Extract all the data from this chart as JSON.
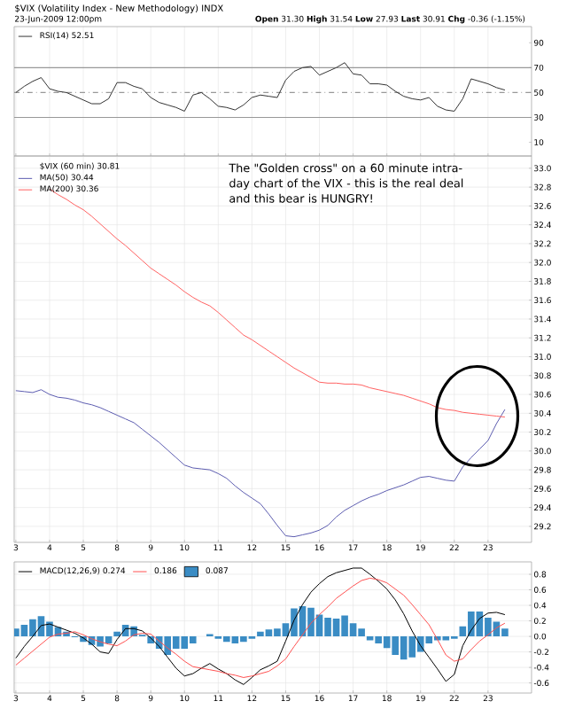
{
  "chart_data": [
    {
      "type": "line",
      "title": "$VIX (Volatility Index - New Methodology) INDX",
      "subtitle": "23-Jun-2009 12:00pm",
      "annotations": [
        "**Open** 31.30 **High** 31.54 **Low** 27.93 **Last** 30.91 **Chg** -0.36 (-1.15%)"
      ],
      "categories": [
        null,
        null,
        null,
        null,
        null,
        null,
        null,
        null,
        null,
        null,
        null,
        null,
        null,
        null,
        null,
        null,
        null,
        null,
        null,
        null,
        null,
        null,
        null,
        null,
        null,
        null,
        null,
        null,
        null,
        null,
        null,
        null,
        null,
        null,
        null,
        null,
        null,
        null,
        null,
        null,
        null,
        null,
        null,
        null,
        null,
        null,
        null,
        null,
        null,
        null,
        null,
        null,
        null,
        null,
        null,
        null,
        null,
        null,
        null,
        null
      ],
      "series": [
        {
          "name": "RSI(14) 52.51",
          "color": "#333333",
          "values": [
            50,
            55,
            59,
            62,
            53,
            51,
            50,
            47,
            44,
            41,
            41,
            45,
            58,
            58,
            55,
            53,
            46,
            42,
            40,
            38,
            35,
            48,
            50,
            45,
            39,
            38,
            36,
            40,
            46,
            48,
            47,
            46,
            60,
            67,
            70,
            71,
            64,
            67,
            70,
            74,
            65,
            64,
            57,
            57,
            56,
            51,
            47,
            45,
            44,
            46,
            39,
            36,
            35,
            45,
            61,
            59,
            57,
            54,
            52,
            null
          ]
        }
      ],
      "ylim": [
        -1,
        103
      ],
      "yticks": [
        10,
        30,
        50,
        70,
        90
      ],
      "tick_labels": "y",
      "ref_lines": [
        {
          "axis": "y",
          "value": 70,
          "color": "#999999",
          "line_style": "solid"
        },
        {
          "axis": "y",
          "value": 50,
          "color": "#999999",
          "line_style": "dashed"
        },
        {
          "axis": "y",
          "value": 30,
          "color": "#999999",
          "line_style": "solid"
        }
      ],
      "grid": "x",
      "legend": "top left"
    },
    {
      "type": "line",
      "legend_title": "$VIX (60 min) 30.81",
      "annotations": [
        "The \"Golden cross\" on a 60 minute intra-day chart of the VIX - this is the real deal and this bear is HUNGRY!"
      ],
      "categories": [
        "3",
        null,
        null,
        null,
        "4",
        null,
        null,
        null,
        "5",
        null,
        null,
        null,
        "8",
        null,
        null,
        null,
        "9",
        null,
        null,
        null,
        "10",
        null,
        null,
        null,
        "11",
        null,
        null,
        null,
        "12",
        null,
        null,
        null,
        "15",
        null,
        null,
        null,
        "16",
        null,
        null,
        null,
        "17",
        null,
        null,
        null,
        "18",
        null,
        null,
        null,
        "19",
        null,
        null,
        null,
        "22",
        null,
        null,
        null,
        "23",
        null,
        null,
        null
      ],
      "series": [
        {
          "name": "MA(50) 30.44",
          "color": "#5c5cb0",
          "values": [
            30.64,
            30.63,
            30.62,
            30.65,
            30.6,
            30.57,
            30.56,
            30.54,
            30.51,
            30.49,
            30.46,
            30.42,
            30.38,
            30.34,
            30.3,
            30.23,
            30.16,
            30.09,
            30.01,
            29.93,
            29.85,
            29.82,
            29.81,
            29.8,
            29.76,
            29.71,
            29.63,
            29.56,
            29.5,
            29.44,
            29.33,
            29.21,
            29.1,
            29.09,
            29.11,
            29.13,
            29.16,
            29.21,
            29.3,
            29.37,
            29.42,
            29.47,
            29.51,
            29.54,
            29.58,
            29.61,
            29.64,
            29.68,
            29.72,
            29.73,
            29.71,
            29.69,
            29.68,
            29.83,
            29.93,
            30.02,
            30.11,
            30.29,
            30.44,
            null
          ]
        },
        {
          "name": "MA(200) 30.36",
          "color": "#ff6060",
          "values": [
            null,
            null,
            null,
            null,
            32.78,
            32.72,
            32.67,
            32.61,
            32.56,
            32.49,
            32.41,
            32.33,
            32.25,
            32.18,
            32.1,
            32.02,
            31.94,
            31.88,
            31.82,
            31.76,
            31.69,
            31.63,
            31.58,
            31.54,
            31.47,
            31.39,
            31.31,
            31.23,
            31.18,
            31.12,
            31.06,
            31.0,
            30.94,
            30.88,
            30.83,
            30.78,
            30.73,
            30.72,
            30.72,
            30.71,
            30.71,
            30.7,
            30.67,
            30.65,
            30.63,
            30.61,
            30.59,
            30.56,
            30.53,
            30.5,
            30.46,
            30.44,
            30.43,
            30.41,
            30.4,
            30.39,
            30.38,
            30.37,
            30.36,
            null
          ]
        }
      ],
      "ylim": [
        29.03,
        33.13
      ],
      "yticks": [
        29.2,
        29.4,
        29.6,
        29.8,
        {
          "value": 30,
          "label": "30.0"
        },
        30.2,
        30.4,
        30.6,
        30.8,
        {
          "value": 31,
          "label": "31.0"
        },
        31.2,
        31.4,
        31.6,
        31.8,
        {
          "value": 32,
          "label": "32.0"
        },
        32.2,
        32.4,
        32.6,
        32.8,
        {
          "value": 33,
          "label": "33.0"
        }
      ],
      "grid": true,
      "legend": "top left"
    },
    {
      "type": "line",
      "categories": [
        "3",
        null,
        null,
        null,
        "4",
        null,
        null,
        null,
        "5",
        null,
        null,
        null,
        "8",
        null,
        null,
        null,
        "9",
        null,
        null,
        null,
        "10",
        null,
        null,
        null,
        "11",
        null,
        null,
        null,
        "12",
        null,
        null,
        null,
        "15",
        null,
        null,
        null,
        "16",
        null,
        null,
        null,
        "17",
        null,
        null,
        null,
        "18",
        null,
        null,
        null,
        "19",
        null,
        null,
        null,
        "22",
        null,
        null,
        null,
        "23",
        null,
        null,
        null
      ],
      "series": [
        {
          "name": "MACD(12,26,9) 0.274",
          "color": "#000000",
          "values": [
            -0.28,
            -0.13,
            0.0,
            0.14,
            0.16,
            0.12,
            0.08,
            0.04,
            -0.02,
            -0.1,
            -0.2,
            -0.22,
            -0.04,
            0.1,
            0.1,
            0.07,
            -0.02,
            -0.13,
            -0.27,
            -0.41,
            -0.51,
            -0.48,
            -0.41,
            -0.35,
            -0.42,
            -0.48,
            -0.56,
            -0.62,
            -0.53,
            -0.43,
            -0.38,
            -0.32,
            -0.06,
            0.21,
            0.41,
            0.57,
            0.68,
            0.77,
            0.82,
            0.85,
            0.88,
            0.88,
            0.8,
            0.71,
            0.61,
            0.47,
            0.29,
            0.07,
            -0.12,
            -0.27,
            -0.42,
            -0.58,
            -0.49,
            -0.12,
            0.08,
            0.23,
            0.3,
            0.31,
            0.28,
            null
          ]
        },
        {
          "name": "0.186",
          "color": "#ff5050",
          "values": [
            -0.37,
            -0.28,
            -0.19,
            -0.1,
            -0.01,
            0.03,
            0.04,
            0.06,
            0.02,
            -0.03,
            -0.07,
            -0.1,
            -0.12,
            -0.06,
            0.02,
            0.04,
            0.03,
            -0.06,
            -0.15,
            -0.23,
            -0.32,
            -0.39,
            -0.41,
            -0.43,
            -0.45,
            -0.48,
            -0.5,
            -0.53,
            -0.51,
            -0.48,
            -0.45,
            -0.38,
            -0.29,
            -0.13,
            0.02,
            0.17,
            0.28,
            0.38,
            0.49,
            0.57,
            0.65,
            0.72,
            0.75,
            0.73,
            0.69,
            0.61,
            0.53,
            0.41,
            0.28,
            0.15,
            -0.04,
            -0.24,
            -0.32,
            -0.29,
            -0.17,
            -0.06,
            0.02,
            0.11,
            0.17,
            null
          ]
        },
        {
          "name": "0.087",
          "type": "bar",
          "color": "#3a8cc4",
          "values": [
            0.1,
            0.15,
            0.22,
            0.26,
            0.19,
            0.12,
            0.06,
            -0.01,
            -0.07,
            -0.11,
            -0.13,
            -0.09,
            0.06,
            0.15,
            0.13,
            0.02,
            -0.09,
            -0.16,
            -0.24,
            -0.16,
            -0.16,
            -0.09,
            0.0,
            0.03,
            -0.03,
            -0.07,
            -0.09,
            -0.07,
            -0.03,
            0.06,
            0.09,
            0.1,
            0.17,
            0.36,
            0.39,
            0.37,
            0.28,
            0.24,
            0.23,
            0.27,
            0.17,
            0.1,
            -0.05,
            -0.09,
            -0.15,
            -0.24,
            -0.3,
            -0.27,
            -0.2,
            -0.09,
            -0.05,
            -0.05,
            -0.03,
            0.13,
            0.32,
            0.32,
            0.24,
            0.19,
            0.1,
            null
          ]
        }
      ],
      "ylim": [
        -0.73,
        0.96
      ],
      "yticks": [
        -0.6,
        -0.4,
        -0.2,
        {
          "value": 0,
          "label": "0.0"
        },
        0.2,
        0.4,
        0.6,
        0.8
      ],
      "grid": true,
      "legend": "top left"
    }
  ]
}
